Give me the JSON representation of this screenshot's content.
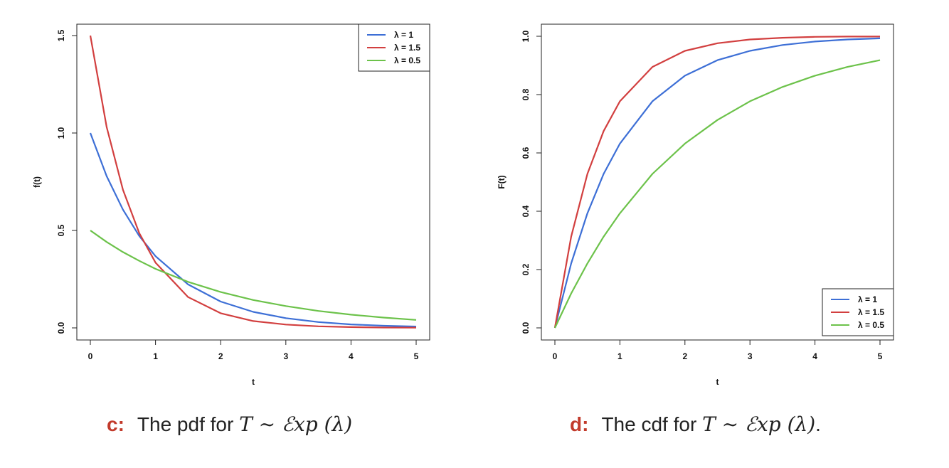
{
  "colors": {
    "blue": "#3d6fd6",
    "red": "#d23f3f",
    "green": "#6cc24a",
    "caption_letter": "#c23a2b"
  },
  "chart_data": [
    {
      "type": "line",
      "xlabel": "t",
      "ylabel": "f(t)",
      "xlim": [
        0,
        5
      ],
      "ylim": [
        0,
        1.5
      ],
      "xticks": [
        "0",
        "1",
        "2",
        "3",
        "4",
        "5"
      ],
      "yticks": [
        "0.0",
        "0.5",
        "1.0",
        "1.5"
      ],
      "legend_position": "top-right",
      "x": [
        0,
        0.25,
        0.5,
        0.75,
        1,
        1.5,
        2,
        2.5,
        3,
        3.5,
        4,
        4.5,
        5
      ],
      "series": [
        {
          "name": "λ = 1",
          "color": "blue",
          "values": [
            1.0,
            0.779,
            0.607,
            0.472,
            0.368,
            0.223,
            0.135,
            0.082,
            0.05,
            0.03,
            0.018,
            0.011,
            0.007
          ]
        },
        {
          "name": "λ = 1.5",
          "color": "red",
          "values": [
            1.5,
            1.031,
            0.709,
            0.487,
            0.335,
            0.158,
            0.075,
            0.035,
            0.017,
            0.008,
            0.004,
            0.002,
            0.001
          ]
        },
        {
          "name": "λ = 0.5",
          "color": "green",
          "values": [
            0.5,
            0.441,
            0.389,
            0.344,
            0.303,
            0.236,
            0.184,
            0.143,
            0.112,
            0.087,
            0.068,
            0.053,
            0.041
          ]
        }
      ]
    },
    {
      "type": "line",
      "xlabel": "t",
      "ylabel": "F(t)",
      "xlim": [
        0,
        5
      ],
      "ylim": [
        0,
        1
      ],
      "xticks": [
        "0",
        "1",
        "2",
        "3",
        "4",
        "5"
      ],
      "yticks": [
        "0.0",
        "0.2",
        "0.4",
        "0.6",
        "0.8",
        "1.0"
      ],
      "legend_position": "bottom-right",
      "x": [
        0,
        0.25,
        0.5,
        0.75,
        1,
        1.5,
        2,
        2.5,
        3,
        3.5,
        4,
        4.5,
        5
      ],
      "series": [
        {
          "name": "λ = 1",
          "color": "blue",
          "values": [
            0,
            0.221,
            0.393,
            0.528,
            0.632,
            0.777,
            0.865,
            0.918,
            0.95,
            0.97,
            0.982,
            0.989,
            0.993
          ]
        },
        {
          "name": "λ = 1.5",
          "color": "red",
          "values": [
            0,
            0.313,
            0.528,
            0.675,
            0.777,
            0.895,
            0.95,
            0.976,
            0.989,
            0.995,
            0.998,
            0.999,
            0.999
          ]
        },
        {
          "name": "λ = 0.5",
          "color": "green",
          "values": [
            0,
            0.118,
            0.221,
            0.313,
            0.393,
            0.528,
            0.632,
            0.713,
            0.777,
            0.826,
            0.865,
            0.895,
            0.918
          ]
        }
      ]
    }
  ],
  "captions": [
    {
      "letter": "c:",
      "text": "The pdf for ",
      "math": "T ∼ ℰxp (λ)",
      "suffix": ""
    },
    {
      "letter": "d:",
      "text": "The cdf for ",
      "math": "T ∼ ℰxp (λ)",
      "suffix": "."
    }
  ]
}
